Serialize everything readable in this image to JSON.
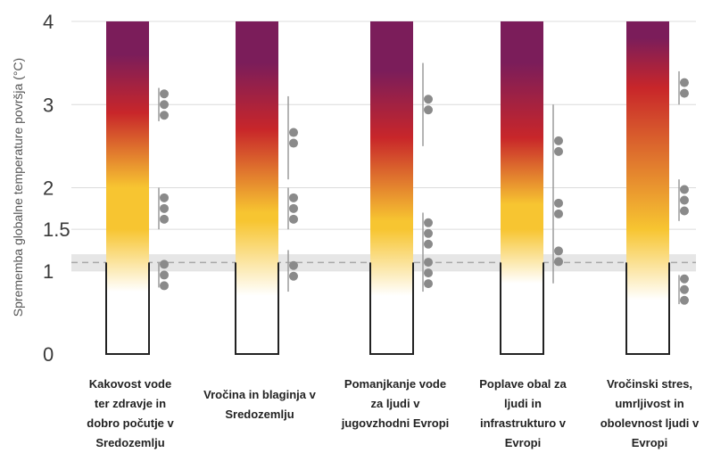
{
  "chart_data": {
    "type": "bar",
    "ylabel": "Sprememba globalne temperature površja (°C)",
    "ylim": [
      0,
      4
    ],
    "yticks": [
      {
        "value": 0,
        "label": "0"
      },
      {
        "value": 1,
        "label": "1"
      },
      {
        "value": 1.5,
        "label": "1.5"
      },
      {
        "value": 2,
        "label": "2"
      },
      {
        "value": 3,
        "label": "3"
      },
      {
        "value": 4,
        "label": "4"
      }
    ],
    "grid": true,
    "present_warming_band": [
      1.0,
      1.2
    ],
    "present_warming_line": 1.1,
    "colors": {
      "white": "#ffffff",
      "yellow": "#f7c531",
      "red": "#c8262a",
      "purple": "#7b1d5a",
      "band": "#e6e6e6",
      "dots": "#8a8a8a"
    },
    "categories": [
      {
        "label": [
          "Kakovost vode",
          "ter zdravje in",
          "dobro počutje v",
          "Sredozemlju"
        ],
        "transitions": [
          {
            "from": 0.75,
            "to": 1.5
          },
          {
            "from": 2.0,
            "to": 2.9
          },
          {
            "from": 2.9,
            "to": 3.6
          }
        ],
        "confidence": [
          {
            "from": 0.8,
            "to": 1.1,
            "dots": 3
          },
          {
            "from": 1.5,
            "to": 2.0,
            "dots": 3
          },
          {
            "from": 2.8,
            "to": 3.2,
            "dots": 3
          }
        ]
      },
      {
        "label": [
          "Vročina in blaginja v",
          "Sredozemlju"
        ],
        "transitions": [
          {
            "from": 0.7,
            "to": 1.6
          },
          {
            "from": 1.7,
            "to": 2.7
          },
          {
            "from": 2.7,
            "to": 3.5
          }
        ],
        "confidence": [
          {
            "from": 0.75,
            "to": 1.25,
            "dots": 2
          },
          {
            "from": 1.5,
            "to": 2.0,
            "dots": 3
          },
          {
            "from": 2.1,
            "to": 3.1,
            "dots": 2
          }
        ]
      },
      {
        "label": [
          "Pomanjkanje vode",
          "za ljudi v",
          "jugovzhodni Evropi"
        ],
        "transitions": [
          {
            "from": 0.7,
            "to": 1.5
          },
          {
            "from": 1.6,
            "to": 2.6
          },
          {
            "from": 2.6,
            "to": 3.4
          }
        ],
        "confidence": [
          {
            "from": 0.75,
            "to": 1.2,
            "dots": 3
          },
          {
            "from": 1.2,
            "to": 1.7,
            "dots": 3
          },
          {
            "from": 2.5,
            "to": 3.5,
            "dots": 2
          }
        ]
      },
      {
        "label": [
          "Poplave obal za",
          "ljudi in",
          "infrastrukturo v",
          "Evropi"
        ],
        "transitions": [
          {
            "from": 0.85,
            "to": 1.5
          },
          {
            "from": 1.8,
            "to": 2.6
          },
          {
            "from": 2.6,
            "to": 3.5
          }
        ],
        "confidence": [
          {
            "from": 0.85,
            "to": 1.5,
            "dots": 2
          },
          {
            "from": 1.5,
            "to": 2.0,
            "dots": 2
          },
          {
            "from": 2.0,
            "to": 3.0,
            "dots": 2
          }
        ]
      },
      {
        "label": [
          "Vročinski stres,",
          "umrljivost in",
          "obolevnost ljudi v",
          "Evropi"
        ],
        "transitions": [
          {
            "from": 0.65,
            "to": 1.5
          },
          {
            "from": 1.5,
            "to": 3.2
          },
          {
            "from": 3.2,
            "to": 3.8
          }
        ],
        "confidence": [
          {
            "from": 0.6,
            "to": 0.95,
            "dots": 3
          },
          {
            "from": 1.6,
            "to": 2.1,
            "dots": 3
          },
          {
            "from": 3.0,
            "to": 3.4,
            "dots": 2
          }
        ]
      }
    ]
  }
}
